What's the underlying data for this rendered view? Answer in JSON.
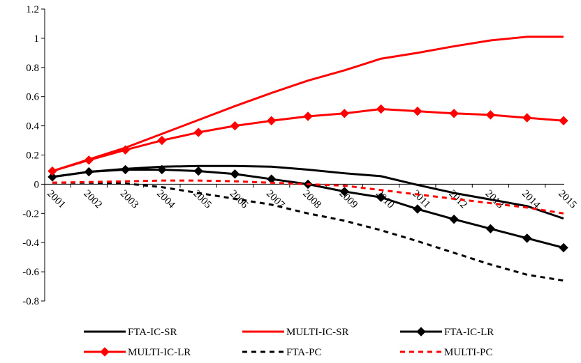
{
  "chart_data": {
    "type": "line",
    "title": "",
    "xlabel": "",
    "ylabel": "",
    "categories": [
      "2001",
      "2002",
      "2003",
      "2004",
      "2005",
      "2006",
      "2007",
      "2008",
      "2009",
      "2010",
      "2011",
      "2012",
      "2013",
      "2014",
      "2015"
    ],
    "ylim": [
      -0.8,
      1.2
    ],
    "yticks": [
      "-0.8",
      "-0.6",
      "-0.4",
      "-0.2",
      "0",
      "0.2",
      "0.4",
      "0.6",
      "0.8",
      "1",
      "1.2"
    ],
    "grid": false,
    "legend_position": "bottom",
    "series": [
      {
        "name": "FTA-IC-SR",
        "color": "#000000",
        "dash": "solid",
        "marker": "none",
        "values": [
          0.05,
          0.085,
          0.105,
          0.12,
          0.125,
          0.125,
          0.12,
          0.1,
          0.075,
          0.055,
          -0.005,
          -0.06,
          -0.105,
          -0.15,
          -0.235
        ]
      },
      {
        "name": "MULTI-IC-SR",
        "color": "#ff0000",
        "dash": "solid",
        "marker": "none",
        "values": [
          0.09,
          0.17,
          0.25,
          0.345,
          0.44,
          0.535,
          0.625,
          0.71,
          0.78,
          0.86,
          0.9,
          0.945,
          0.985,
          1.01,
          1.01
        ]
      },
      {
        "name": "FTA-IC-LR",
        "color": "#000000",
        "dash": "solid",
        "marker": "diamond",
        "values": [
          0.05,
          0.085,
          0.1,
          0.1,
          0.09,
          0.07,
          0.035,
          0.0,
          -0.05,
          -0.09,
          -0.17,
          -0.24,
          -0.305,
          -0.37,
          -0.435
        ]
      },
      {
        "name": "MULTI-IC-LR",
        "color": "#ff0000",
        "dash": "solid",
        "marker": "diamond",
        "values": [
          0.09,
          0.165,
          0.235,
          0.3,
          0.355,
          0.4,
          0.435,
          0.465,
          0.485,
          0.515,
          0.5,
          0.485,
          0.475,
          0.455,
          0.435
        ]
      },
      {
        "name": "FTA-PC",
        "color": "#000000",
        "dash": "dashed",
        "marker": "none",
        "values": [
          0.01,
          0.01,
          0.005,
          -0.02,
          -0.06,
          -0.1,
          -0.14,
          -0.2,
          -0.25,
          -0.315,
          -0.39,
          -0.47,
          -0.55,
          -0.62,
          -0.66
        ]
      },
      {
        "name": "MULTI-PC",
        "color": "#ff0000",
        "dash": "dashed",
        "marker": "none",
        "values": [
          0.01,
          0.015,
          0.02,
          0.025,
          0.025,
          0.02,
          0.01,
          0.0,
          -0.01,
          -0.04,
          -0.07,
          -0.1,
          -0.13,
          -0.16,
          -0.2
        ]
      }
    ]
  }
}
